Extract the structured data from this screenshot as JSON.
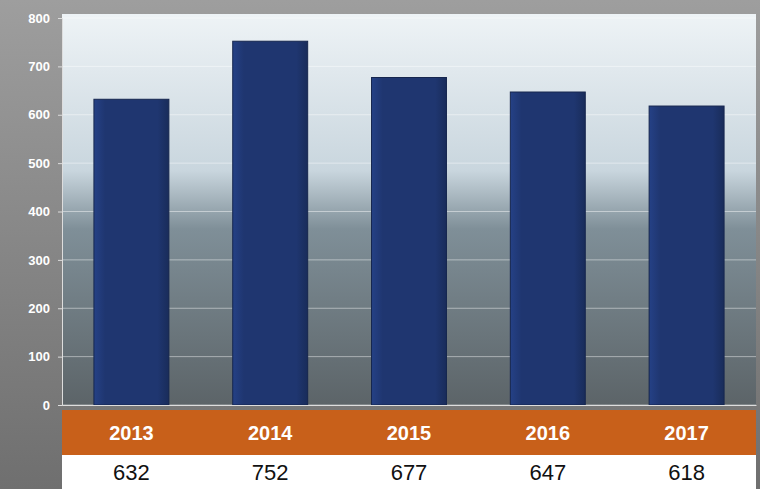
{
  "chart_data": {
    "type": "bar",
    "categories": [
      "2013",
      "2014",
      "2015",
      "2016",
      "2017"
    ],
    "values": [
      632,
      752,
      677,
      647,
      618
    ],
    "color": "#1f3670",
    "ylim": [
      0,
      800
    ],
    "yticks": [
      0,
      100,
      200,
      300,
      400,
      500,
      600,
      700,
      800
    ],
    "grid": true,
    "data_labels": true
  }
}
